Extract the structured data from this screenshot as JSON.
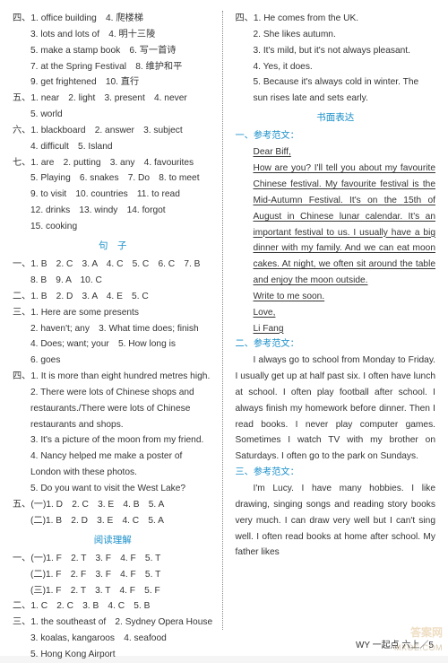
{
  "left": {
    "s4": {
      "label": "四、",
      "l1": "1. office building　4. 爬楼梯",
      "l2": "3. lots and lots of　4. 明十三陵",
      "l3": "5. make a stamp book　6. 写一首诗",
      "l4": "7. at the Spring Festival　8. 维护和平",
      "l5": "9. get frightened　10. 直行"
    },
    "s5": {
      "label": "五、",
      "l1": "1. near　2. light　3. present　4. never",
      "l2": "5. world"
    },
    "s6": {
      "label": "六、",
      "l1": "1. blackboard　2. answer　3. subject",
      "l2": "4. difficult　5. Island"
    },
    "s7": {
      "label": "七、",
      "l1": "1. are　2. putting　3. any　4. favourites",
      "l2": "5. Playing　6. snakes　7. Do　8. to meet",
      "l3": "9. to visit　10. countries　11. to read",
      "l4": "12. drinks　13. windy　14. forgot",
      "l5": "15. cooking"
    },
    "h_sentence": "句　子",
    "ss1": {
      "label": "一、",
      "l1": "1. B　2. C　3. A　4. C　5. C　6. C　7. B",
      "l2": "8. B　9. A　10. C"
    },
    "ss2": {
      "label": "二、",
      "l1": "1. B　2. D　3. A　4. E　5. C"
    },
    "ss3": {
      "label": "三、",
      "l1": "1. Here are some presents",
      "l2": "2. haven't; any　3. What time does; finish",
      "l3": "4. Does; want; your　5. How long is",
      "l4": "6. goes"
    },
    "ss4": {
      "label": "四、",
      "l1": "1. It is more than eight hundred metres high.",
      "l2": "2. There were lots of Chinese shops and restaurants./There were lots of Chinese restaurants and shops.",
      "l3": "3. It's a picture of the moon from my friend.",
      "l4": "4. Nancy helped me make a poster of London with these photos.",
      "l5": "5. Do you want to visit the West Lake?"
    },
    "ss5": {
      "label": "五、",
      "l1": "(一)1. D　2. C　3. E　4. B　5. A",
      "l2": "(二)1. B　2. D　3. E　4. C　5. A"
    },
    "h_reading": "阅读理解",
    "r1": {
      "label": "一、",
      "l1": "(一)1. F　2. T　3. F　4. F　5. T",
      "l2": "(二)1. F　2. F　3. F　4. F　5. T",
      "l3": "(三)1. F　2. T　3. T　4. F　5. F"
    },
    "r2": {
      "label": "二、",
      "l1": "1. C　2. C　3. B　4. C　5. B"
    },
    "r3": {
      "label": "三、",
      "l1": "1. the southeast of　2. Sydney Opera House",
      "l2": "3. koalas, kangaroos　4. seafood",
      "l3": "5. Hong Kong Airport"
    }
  },
  "right": {
    "s4": {
      "label": "四、",
      "l1": "1. He comes from the UK.",
      "l2": "2. She likes autumn.",
      "l3": "3. It's mild, but it's not always pleasant.",
      "l4": "4. Yes, it does.",
      "l5": "5. Because it's always cold in winter. The sun rises late and sets early."
    },
    "h_writing": "书面表达",
    "essay1_label": "一、参考范文：",
    "letter": {
      "l1": "Dear Biff,",
      "l2": "How are you? I'll tell you about my favourite Chinese festival. My favourite festival is the Mid-Autumn Festival. It's on the 15th of August in Chinese lunar calendar. It's an important festival to us. I usually have a big dinner with my family. And we can eat moon cakes. At night, we often sit around the table and enjoy the moon outside.",
      "l3": "Write to me soon.",
      "l4": "Love,",
      "l5": "Li Fang"
    },
    "essay2_label": "二、参考范文：",
    "essay2": "I always go to school from Monday to Friday. I usually get up at half past six. I often have lunch at school. I often play football after school. I always finish my homework before dinner. Then I read books. I never play computer games. Sometimes I watch TV with my brother on Saturdays. I often go to the park on Sundays.",
    "essay3_label": "三、参考范文：",
    "essay3": "I'm Lucy. I have many hobbies. I like drawing, singing songs and reading story books very much. I can draw very well but I can't sing well. I often read books at home after school. My father likes"
  },
  "footer": "WY 一起点 六上／5",
  "wm1": "MXOE.COM",
  "wm2": "答案网"
}
